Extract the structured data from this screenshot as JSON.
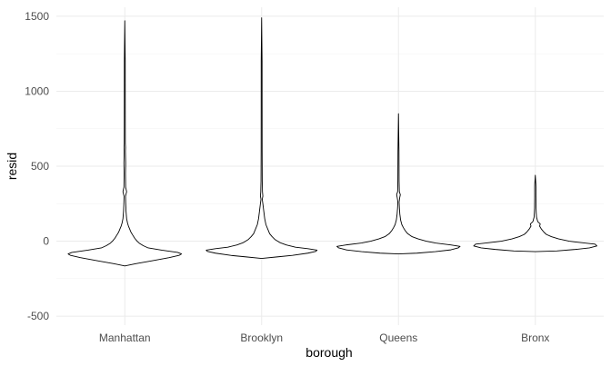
{
  "chart_data": {
    "type": "violin",
    "xlabel": "borough",
    "ylabel": "resid",
    "categories": [
      "Manhattan",
      "Brooklyn",
      "Queens",
      "Bronx"
    ],
    "ylim": [
      -560,
      1560
    ],
    "yticks": [
      -500,
      0,
      500,
      1000,
      1500
    ],
    "yminor": [
      -250,
      250,
      750,
      1250
    ],
    "grid": true,
    "legend": "none",
    "violins": [
      {
        "name": "Manhattan",
        "profile": [
          [
            -165,
            0.0
          ],
          [
            -150,
            0.18
          ],
          [
            -130,
            0.45
          ],
          [
            -110,
            0.72
          ],
          [
            -95,
            0.88
          ],
          [
            -85,
            0.92
          ],
          [
            -75,
            0.86
          ],
          [
            -60,
            0.6
          ],
          [
            -45,
            0.38
          ],
          [
            -30,
            0.3
          ],
          [
            -15,
            0.24
          ],
          [
            0,
            0.2
          ],
          [
            20,
            0.16
          ],
          [
            40,
            0.13
          ],
          [
            60,
            0.1
          ],
          [
            80,
            0.08
          ],
          [
            100,
            0.06
          ],
          [
            120,
            0.045
          ],
          [
            150,
            0.03
          ],
          [
            200,
            0.02
          ],
          [
            250,
            0.015
          ],
          [
            300,
            0.012
          ],
          [
            330,
            0.03
          ],
          [
            360,
            0.008
          ],
          [
            450,
            0.005
          ],
          [
            520,
            0.008
          ],
          [
            600,
            0.004
          ],
          [
            625,
            0.012
          ],
          [
            650,
            0.003
          ],
          [
            800,
            0.002
          ],
          [
            1000,
            0.0015
          ],
          [
            1200,
            0.0012
          ],
          [
            1470,
            0.0
          ]
        ]
      },
      {
        "name": "Brooklyn",
        "profile": [
          [
            -115,
            0.0
          ],
          [
            -105,
            0.25
          ],
          [
            -95,
            0.5
          ],
          [
            -80,
            0.75
          ],
          [
            -68,
            0.88
          ],
          [
            -60,
            0.9
          ],
          [
            -50,
            0.75
          ],
          [
            -40,
            0.55
          ],
          [
            -25,
            0.4
          ],
          [
            -10,
            0.3
          ],
          [
            10,
            0.22
          ],
          [
            30,
            0.17
          ],
          [
            50,
            0.13
          ],
          [
            80,
            0.1
          ],
          [
            110,
            0.07
          ],
          [
            150,
            0.05
          ],
          [
            200,
            0.035
          ],
          [
            250,
            0.02
          ],
          [
            280,
            0.01
          ],
          [
            300,
            0.02
          ],
          [
            330,
            0.008
          ],
          [
            370,
            0.012
          ],
          [
            400,
            0.004
          ],
          [
            600,
            0.002
          ],
          [
            900,
            0.0015
          ],
          [
            1200,
            0.0012
          ],
          [
            1490,
            0.0
          ]
        ]
      },
      {
        "name": "Queens",
        "profile": [
          [
            -85,
            0.0
          ],
          [
            -80,
            0.3
          ],
          [
            -70,
            0.6
          ],
          [
            -58,
            0.85
          ],
          [
            -45,
            0.97
          ],
          [
            -35,
            1.0
          ],
          [
            -25,
            0.85
          ],
          [
            -12,
            0.6
          ],
          [
            0,
            0.45
          ],
          [
            15,
            0.32
          ],
          [
            30,
            0.22
          ],
          [
            50,
            0.15
          ],
          [
            70,
            0.11
          ],
          [
            90,
            0.08
          ],
          [
            110,
            0.055
          ],
          [
            140,
            0.035
          ],
          [
            180,
            0.022
          ],
          [
            220,
            0.015
          ],
          [
            260,
            0.01
          ],
          [
            290,
            0.02
          ],
          [
            310,
            0.03
          ],
          [
            330,
            0.008
          ],
          [
            400,
            0.004
          ],
          [
            600,
            0.002
          ],
          [
            850,
            0.0
          ]
        ]
      },
      {
        "name": "Bronx",
        "profile": [
          [
            -70,
            0.0
          ],
          [
            -65,
            0.35
          ],
          [
            -55,
            0.65
          ],
          [
            -45,
            0.88
          ],
          [
            -32,
            1.0
          ],
          [
            -20,
            0.97
          ],
          [
            -10,
            0.75
          ],
          [
            0,
            0.55
          ],
          [
            15,
            0.38
          ],
          [
            30,
            0.26
          ],
          [
            45,
            0.18
          ],
          [
            60,
            0.14
          ],
          [
            80,
            0.1
          ],
          [
            100,
            0.07
          ],
          [
            115,
            0.08
          ],
          [
            130,
            0.04
          ],
          [
            160,
            0.02
          ],
          [
            190,
            0.015
          ],
          [
            220,
            0.006
          ],
          [
            300,
            0.004
          ],
          [
            360,
            0.01
          ],
          [
            380,
            0.003
          ],
          [
            440,
            0.0
          ]
        ]
      }
    ]
  }
}
